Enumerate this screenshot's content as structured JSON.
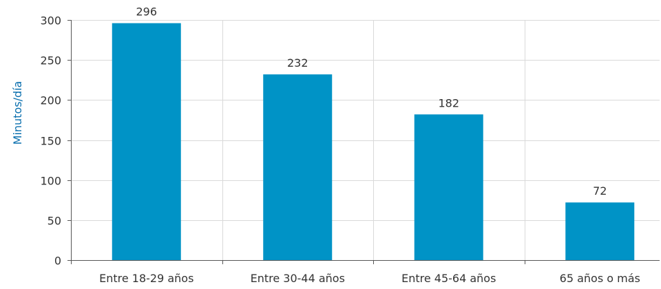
{
  "chart_data": {
    "type": "bar",
    "title": "",
    "xlabel": "",
    "ylabel": "Minutos/día",
    "categories": [
      "Entre 18-29 años",
      "Entre 30-44 años",
      "Entre 45-64 años",
      "65 años o más"
    ],
    "values": [
      296,
      232,
      182,
      72
    ],
    "data_labels": [
      "296",
      "232",
      "182",
      "72"
    ],
    "ylim": [
      0,
      300
    ],
    "yticks": [
      0,
      50,
      100,
      150,
      200,
      250,
      300
    ],
    "ytick_labels": [
      "0",
      "50",
      "100",
      "150",
      "200",
      "250",
      "300"
    ],
    "grid": true,
    "legend": "none",
    "colors": {
      "bar": "#0093c6",
      "ylabel": "#0a6fae",
      "grid": "#d9d9d9",
      "axis": "#555555"
    }
  }
}
